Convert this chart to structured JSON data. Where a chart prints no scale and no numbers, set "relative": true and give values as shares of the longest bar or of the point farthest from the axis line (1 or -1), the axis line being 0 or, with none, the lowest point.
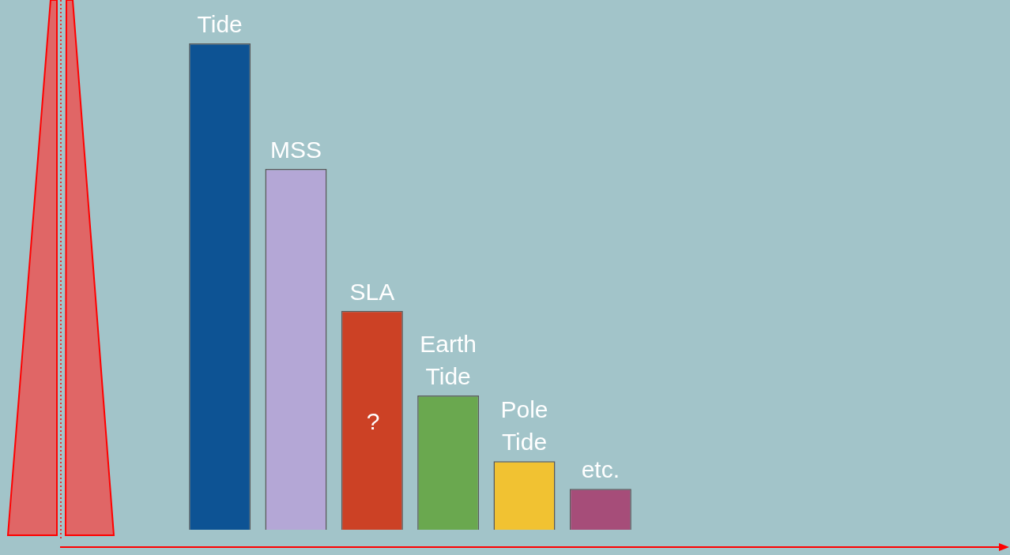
{
  "chart_data": {
    "type": "bar",
    "relative": true,
    "categories": [
      "Tide",
      "MSS",
      "SLA",
      "Earth Tide",
      "Pole Tide",
      "etc."
    ],
    "values": [
      1,
      0.742,
      0.45,
      0.276,
      0.141,
      0.084
    ],
    "colors": [
      "#0d5394",
      "#b4a7d6",
      "#cc4125",
      "#6aa84f",
      "#f1c232",
      "#a64d79"
    ],
    "annotations": [
      "?"
    ],
    "legend": false
  }
}
